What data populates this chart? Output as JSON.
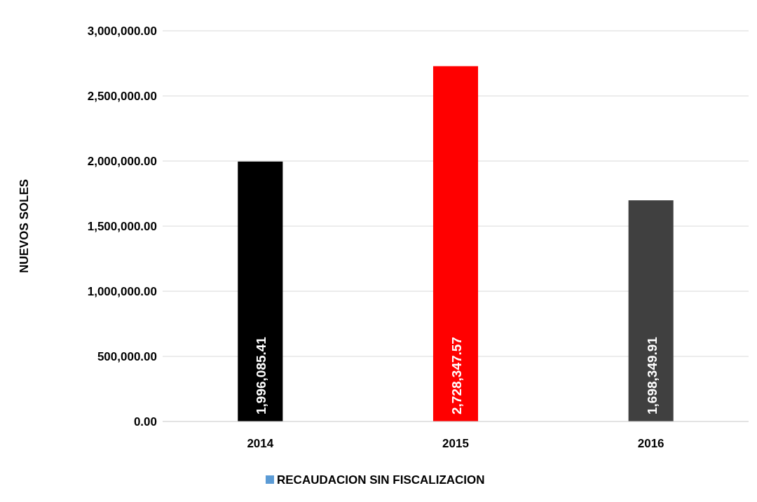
{
  "chart_data": {
    "type": "bar",
    "ylabel": "NUEVOS SOLES",
    "categories": [
      "2014",
      "2015",
      "2016"
    ],
    "series": [
      {
        "name": "RECAUDACION SIN FISCALIZACION",
        "color": "#5b9bd5",
        "colors": [
          "#000000",
          "#ff0000",
          "#404040"
        ],
        "values": [
          1996085.41,
          2728347.57,
          1698349.91
        ],
        "value_labels": [
          "1,996,085.41",
          "2,728,347.57",
          "1,698,349.91"
        ]
      }
    ],
    "ylim": [
      0,
      3000000
    ],
    "yticks": [
      {
        "value": 0,
        "label": "0.00"
      },
      {
        "value": 500000,
        "label": "500,000.00"
      },
      {
        "value": 1000000,
        "label": "1,000,000.00"
      },
      {
        "value": 1500000,
        "label": "1,500,000.00"
      },
      {
        "value": 2000000,
        "label": "2,000,000.00"
      },
      {
        "value": 2500000,
        "label": "2,500,000.00"
      },
      {
        "value": 3000000,
        "label": "3,000,000.00"
      }
    ],
    "grid": "y",
    "legend": "bottom"
  }
}
